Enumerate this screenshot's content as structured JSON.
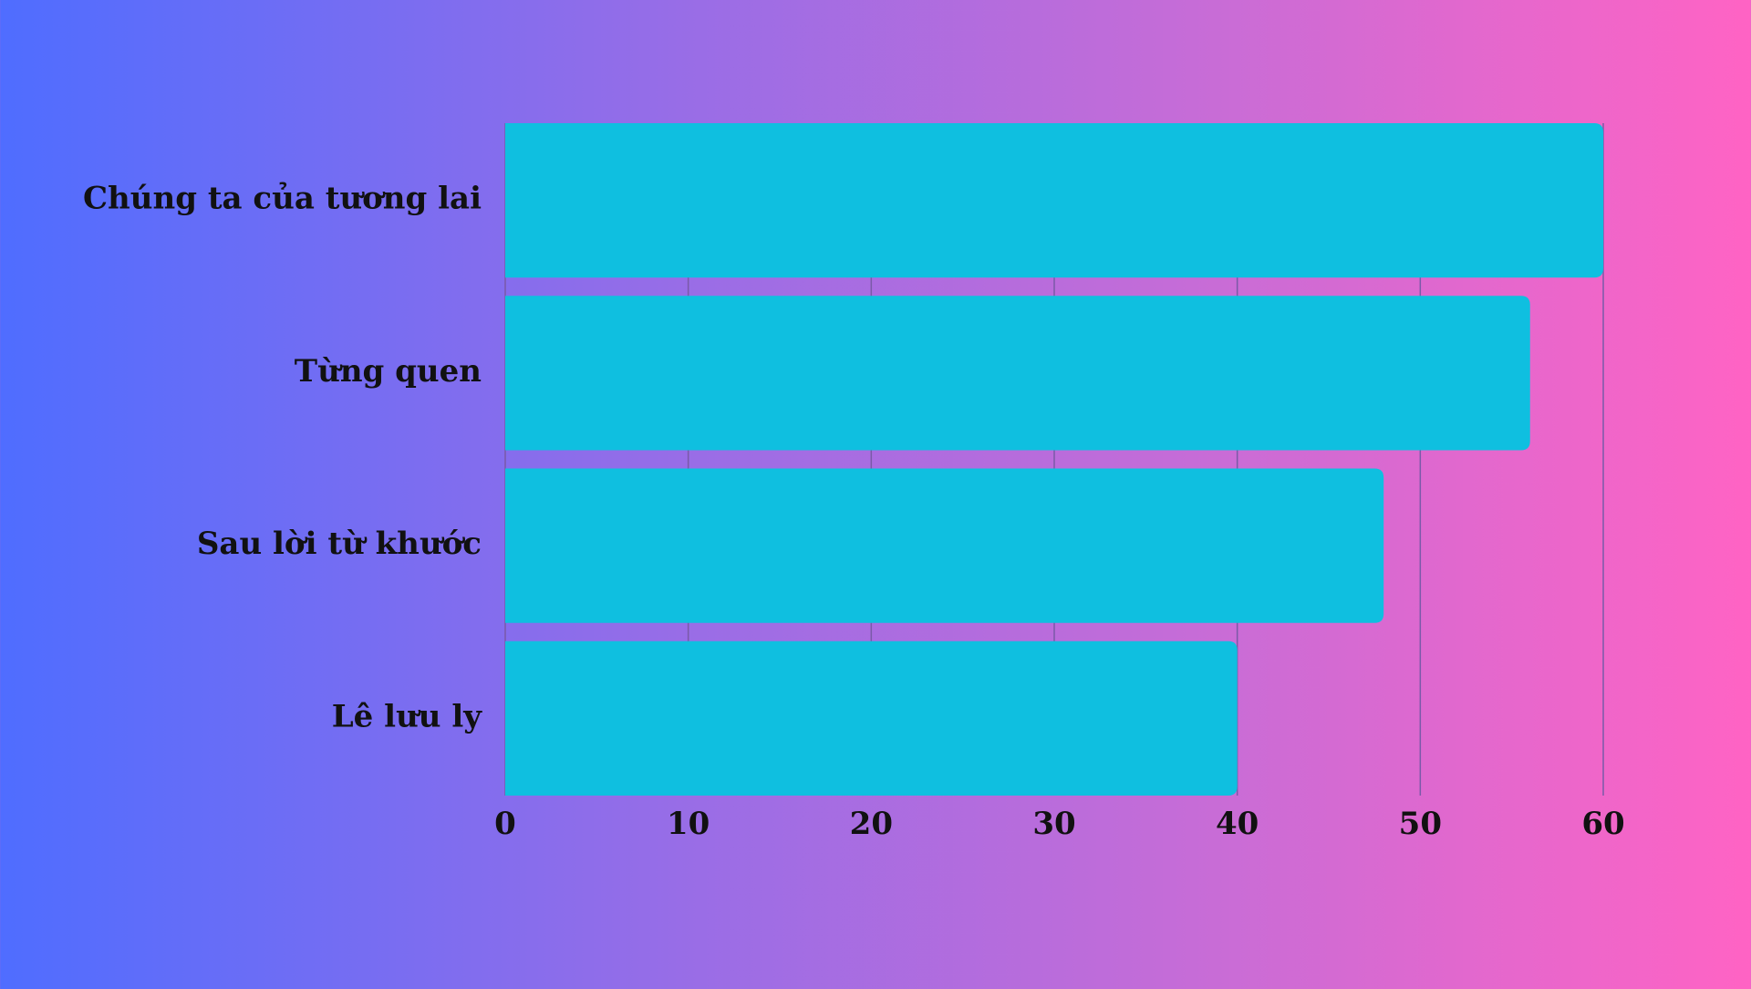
{
  "chart_data": {
    "type": "bar",
    "orientation": "horizontal",
    "categories": [
      "Chúng ta của tương lai",
      "Từng quen",
      "Sau lời từ khước",
      "Lê lưu ly"
    ],
    "values": [
      60,
      56,
      48,
      40
    ],
    "xlim": [
      0,
      60
    ],
    "xticks": [
      "0",
      "10",
      "20",
      "30",
      "40",
      "50",
      "60"
    ],
    "grid": "vertical",
    "title": "",
    "xlabel": "",
    "ylabel": ""
  },
  "colors": {
    "bar": "#0fbfe0",
    "grid": "#7a5aa8",
    "text": "#111111"
  }
}
